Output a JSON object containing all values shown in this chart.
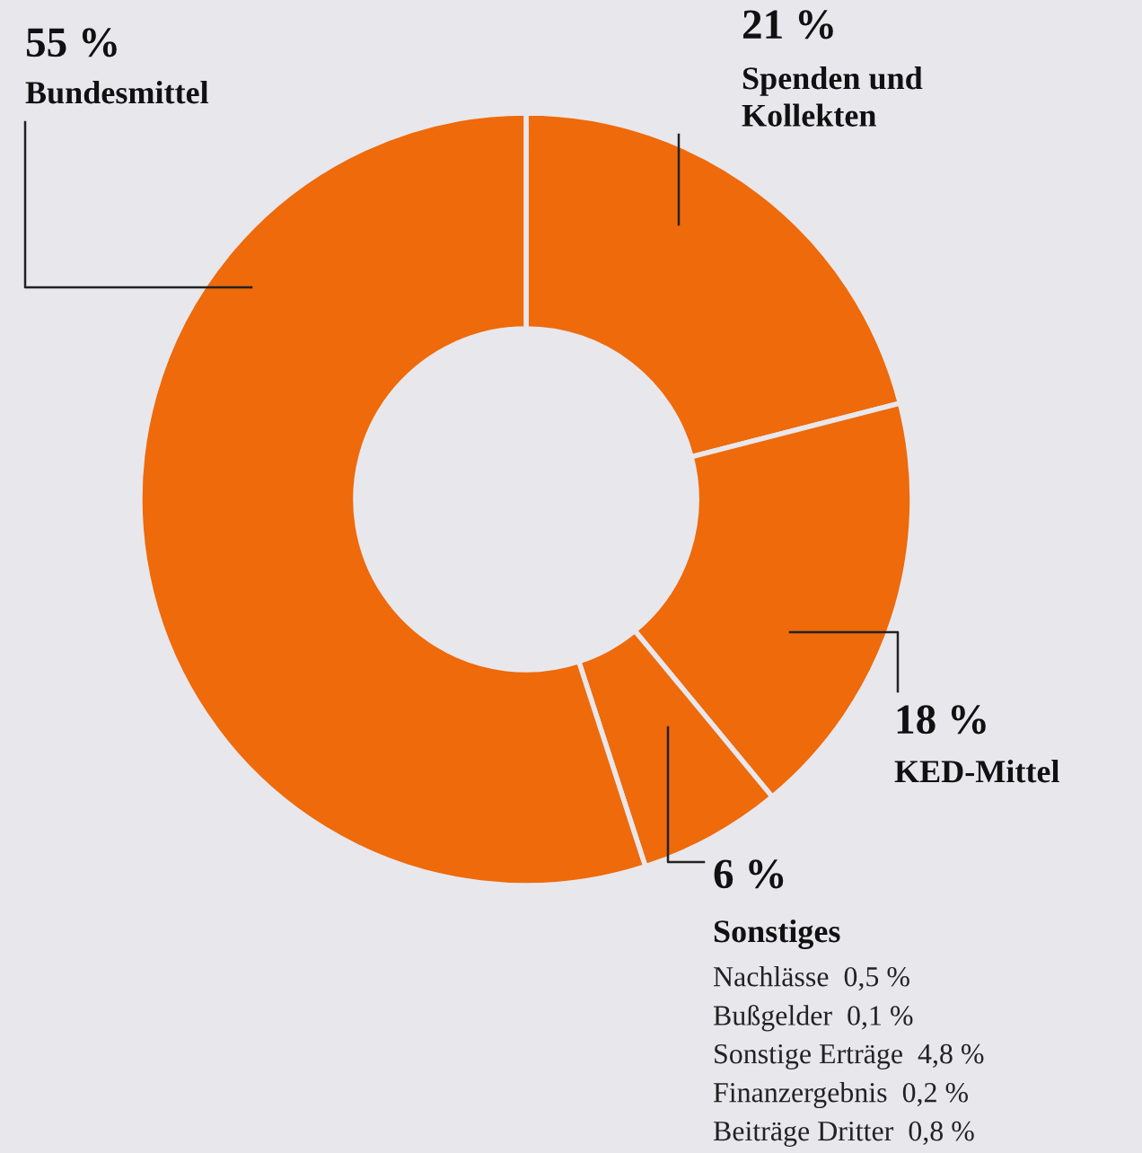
{
  "chart_data": {
    "type": "donut",
    "categories": [
      "Spenden und\nKollekten",
      "KED-Mittel",
      "Sonstiges",
      "Bundesmittel"
    ],
    "values": [
      21,
      18,
      6,
      55
    ],
    "value_labels": [
      "21 %",
      "18 %",
      "6 %",
      "55 %"
    ],
    "colors": [
      "#ee6a0a",
      "#ee6a0a",
      "#ee6a0a",
      "#ee6a0a"
    ],
    "annotations": [
      "Nachlässe  0,5 %",
      "Bußgelder  0,1 %",
      "Sonstige Erträge  4,8 %",
      "Finanzergebnis  0,2 %",
      "Beiträge Dritter  0,8 %"
    ]
  }
}
